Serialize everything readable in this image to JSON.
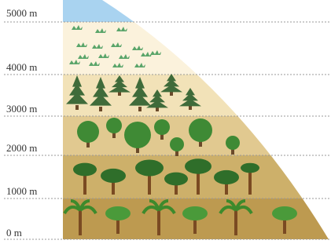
{
  "altitude_labels": [
    "5000 m",
    "4000 m",
    "3000 m",
    "2000 m",
    "1000 m",
    "0 m"
  ]
}
